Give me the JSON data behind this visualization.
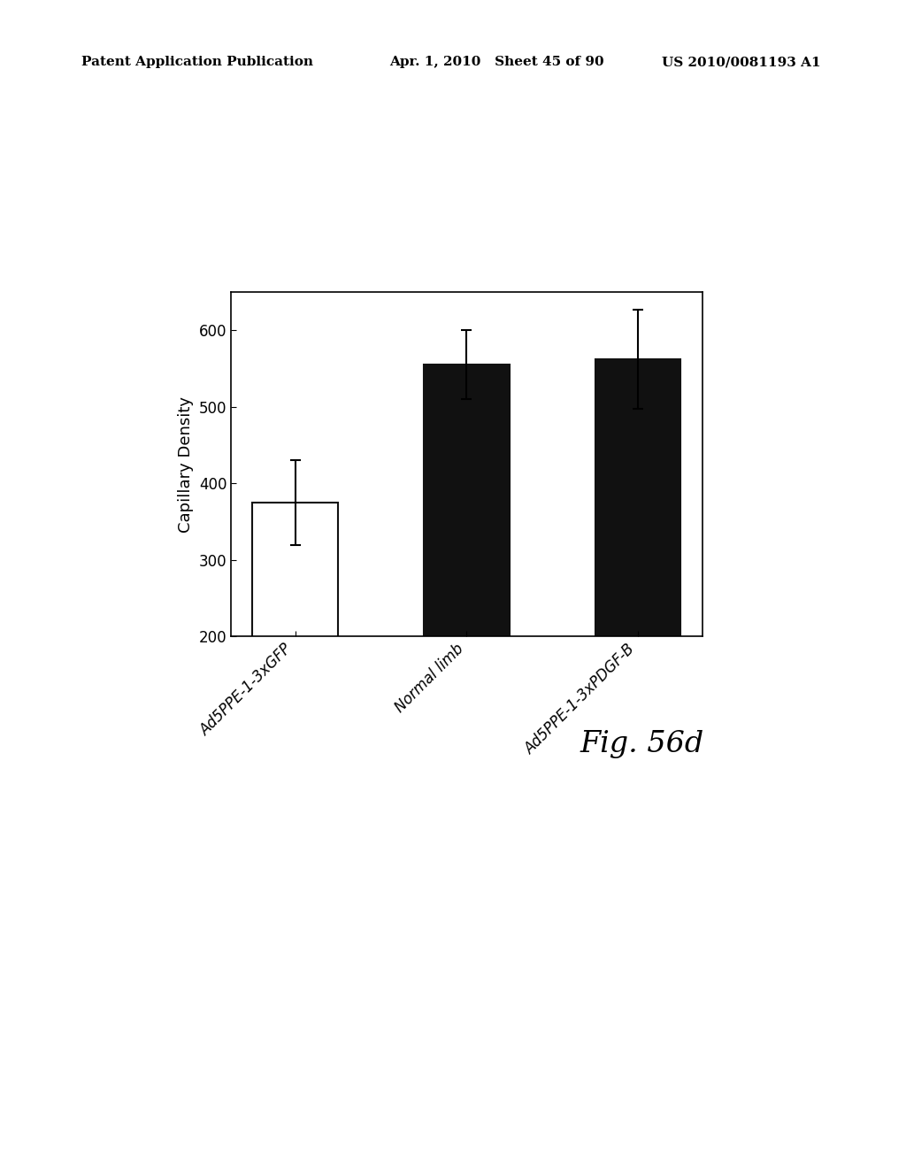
{
  "categories": [
    "Ad5PPE-1-3xGFP",
    "Normal limb",
    "Ad5PPE-1-3xPDGF-B"
  ],
  "values": [
    375,
    555,
    562
  ],
  "errors": [
    55,
    45,
    65
  ],
  "bar_colors": [
    "#ffffff",
    "#111111",
    "#111111"
  ],
  "bar_edgecolors": [
    "#111111",
    "#111111",
    "#111111"
  ],
  "ylabel": "Capillary Density",
  "ylim": [
    200,
    650
  ],
  "yticks": [
    200,
    300,
    400,
    500,
    600
  ],
  "fig_label": "Fig. 56d",
  "fig_label_fontsize": 24,
  "ylabel_fontsize": 13,
  "tick_fontsize": 12,
  "xtick_fontsize": 12,
  "bar_width": 0.5,
  "capsize": 4,
  "background_color": "#ffffff",
  "header_left": "Patent Application Publication",
  "header_mid": "Apr. 1, 2010   Sheet 45 of 90",
  "header_right": "US 2010/0081193 A1",
  "header_fontsize": 11
}
